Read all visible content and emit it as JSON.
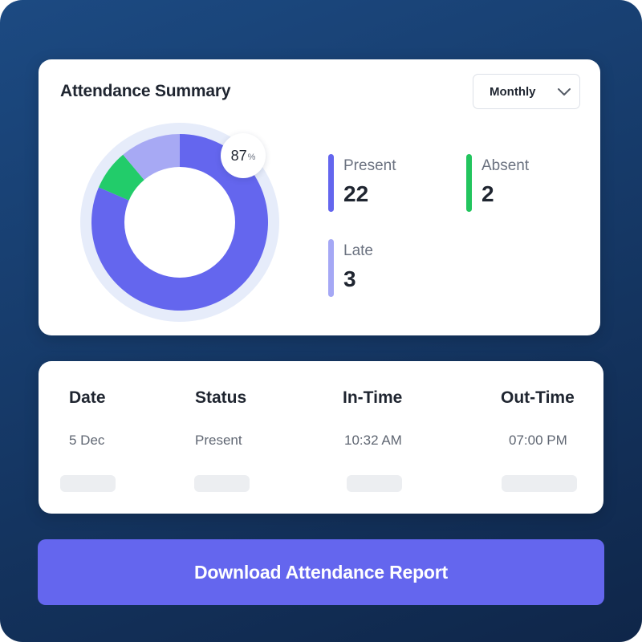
{
  "summary": {
    "title": "Attendance Summary",
    "period": "Monthly",
    "percent": "87",
    "percent_unit": "%",
    "stats": {
      "present": {
        "label": "Present",
        "value": "22",
        "color": "#6466ee"
      },
      "absent": {
        "label": "Absent",
        "value": "2",
        "color": "#22c55e"
      },
      "late": {
        "label": "Late",
        "value": "3",
        "color": "#a5a8f5"
      }
    },
    "donut_colors": {
      "track": "#e6ecfa",
      "present": "#6466ee",
      "absent": "#22cc6a",
      "late": "#a7a9f4"
    }
  },
  "table": {
    "headers": {
      "date": "Date",
      "status": "Status",
      "in_time": "In-Time",
      "out_time": "Out-Time"
    },
    "row": {
      "date": "5 Dec",
      "status": "Present",
      "in_time": "10:32 AM",
      "out_time": "07:00 PM"
    }
  },
  "download_button": {
    "label": "Download Attendance Report"
  }
}
